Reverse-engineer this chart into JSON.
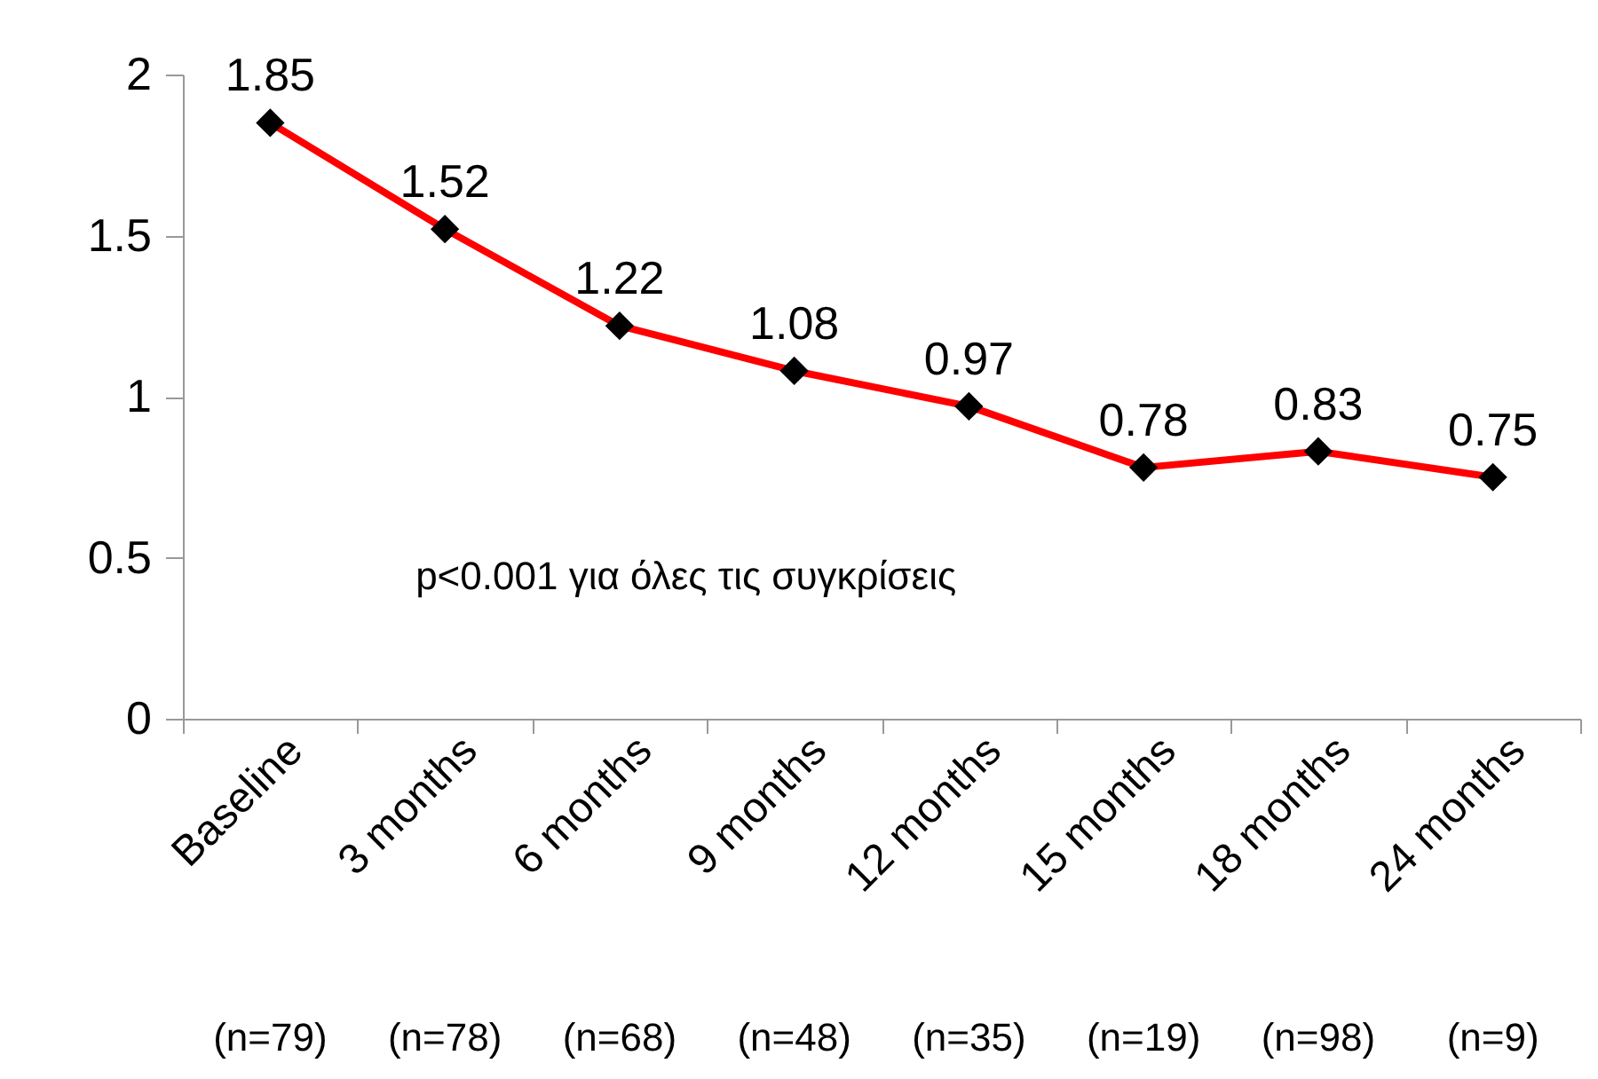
{
  "chart_data": {
    "type": "line",
    "categories": [
      "Baseline",
      "3 months",
      "6 months",
      "9 months",
      "12 months",
      "15 months",
      "18 months",
      "24 months"
    ],
    "series": [
      {
        "color": "#ff0000",
        "values": [
          1.85,
          1.52,
          1.22,
          1.08,
          0.97,
          0.78,
          0.83,
          0.75
        ]
      }
    ],
    "ylim": [
      0,
      2
    ],
    "yticks": [
      0,
      0.5,
      1,
      1.5,
      2
    ],
    "marker": "diamond",
    "line_style": "solid",
    "data_labels": true,
    "annotations": [
      "p<0.001 για όλες τις συγκρίσεις",
      "(n=79)",
      "(n=78)",
      "(n=68)",
      "(n=48)",
      "(n=35)",
      "(n=19)",
      "(n=98)",
      "(n=9)"
    ]
  }
}
